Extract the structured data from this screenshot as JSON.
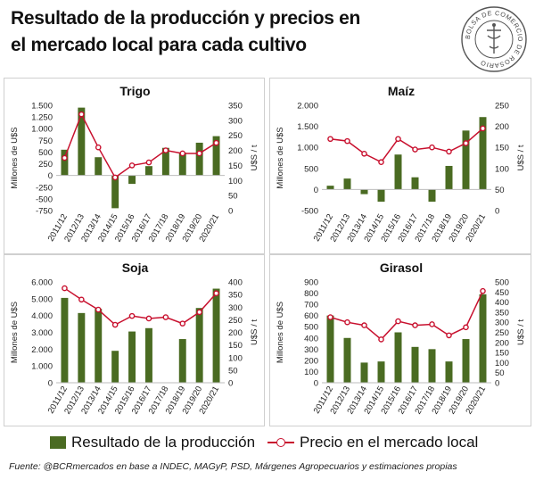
{
  "title_line1": "Resultado de la producción y precios en",
  "title_line2": "el mercado local para cada cultivo",
  "seal_text": "BOLSA DE COMERCIO DE ROSARIO",
  "legend": {
    "bar_label": "Resultado de la producción",
    "line_label": "Precio en el mercado local"
  },
  "source": "Fuente: @BCRmercados en base a INDEC, MAGyP, PSD, Márgenes Agropecuarios y estimaciones propias",
  "colors": {
    "bar": "#4a6b22",
    "line": "#c8102e"
  },
  "chart_data": [
    {
      "type": "bar",
      "title": "Trigo",
      "categories": [
        "2011/12",
        "2012/13",
        "2013/14",
        "2014/15",
        "2015/16",
        "2016/17",
        "2017/18",
        "2018/19",
        "2019/20",
        "2020/21"
      ],
      "ylabel": "Millones de U$S",
      "y2label": "U$S / t",
      "ylim": [
        -750,
        1500
      ],
      "yticks": [
        -750,
        -500,
        -250,
        0,
        250,
        500,
        750,
        1000,
        1250,
        1500
      ],
      "ytick_labels": [
        "-750",
        "-500",
        "-250",
        "0",
        "250",
        "500",
        "750",
        "1.000",
        "1.250",
        "1.500"
      ],
      "y2lim": [
        0,
        350
      ],
      "y2ticks": [
        0,
        50,
        100,
        150,
        200,
        250,
        300,
        350
      ],
      "y2tick_labels": [
        "0",
        "50",
        "100",
        "150",
        "200",
        "250",
        "300",
        "350"
      ],
      "series": [
        {
          "name": "Resultado de la producción",
          "type": "bar",
          "values": [
            550,
            1450,
            390,
            -700,
            -180,
            200,
            590,
            490,
            700,
            840
          ]
        },
        {
          "name": "Precio en el mercado local",
          "type": "line",
          "axis": "right",
          "values": [
            175,
            320,
            210,
            110,
            150,
            160,
            200,
            190,
            190,
            225
          ]
        }
      ]
    },
    {
      "type": "bar",
      "title": "Maíz",
      "categories": [
        "2011/12",
        "2012/13",
        "2013/14",
        "2014/15",
        "2015/16",
        "2016/17",
        "2017/18",
        "2018/19",
        "2019/20",
        "2020/21"
      ],
      "ylabel": "Millones de U$S",
      "y2label": "U$S / t",
      "ylim": [
        -500,
        2000
      ],
      "yticks": [
        -500,
        0,
        500,
        1000,
        1500,
        2000
      ],
      "ytick_labels": [
        "-500",
        "0",
        "500",
        "1.000",
        "1.500",
        "2.000"
      ],
      "y2lim": [
        0,
        250
      ],
      "y2ticks": [
        0,
        50,
        100,
        150,
        200,
        250
      ],
      "y2tick_labels": [
        "0",
        "50",
        "100",
        "150",
        "200",
        "250"
      ],
      "series": [
        {
          "name": "Resultado de la producción",
          "type": "bar",
          "values": [
            90,
            260,
            -110,
            -290,
            830,
            290,
            -290,
            560,
            1400,
            1720
          ]
        },
        {
          "name": "Precio en el mercado local",
          "type": "line",
          "axis": "right",
          "values": [
            170,
            165,
            135,
            115,
            170,
            145,
            150,
            140,
            160,
            195
          ]
        }
      ]
    },
    {
      "type": "bar",
      "title": "Soja",
      "categories": [
        "2011/12",
        "2012/13",
        "2013/14",
        "2014/15",
        "2015/16",
        "2016/17",
        "2017/18",
        "2018/19",
        "2019/20",
        "2020/21"
      ],
      "ylabel": "Millones de U$S",
      "y2label": "U$S / t",
      "ylim": [
        0,
        6000
      ],
      "yticks": [
        0,
        1000,
        2000,
        3000,
        4000,
        5000,
        6000
      ],
      "ytick_labels": [
        "0",
        "1.000",
        "2.000",
        "3.000",
        "4.000",
        "5.000",
        "6.000"
      ],
      "y2lim": [
        0,
        400
      ],
      "y2ticks": [
        0,
        50,
        100,
        150,
        200,
        250,
        300,
        350,
        400
      ],
      "y2tick_labels": [
        "0",
        "50",
        "100",
        "150",
        "200",
        "250",
        "300",
        "350",
        "400"
      ],
      "series": [
        {
          "name": "Resultado de la producción",
          "type": "bar",
          "values": [
            5050,
            4150,
            4400,
            1900,
            3050,
            3250,
            0,
            2600,
            4450,
            5600
          ]
        },
        {
          "name": "Precio en el mercado local",
          "type": "line",
          "axis": "right",
          "values": [
            375,
            330,
            290,
            230,
            265,
            255,
            260,
            235,
            280,
            355
          ]
        }
      ]
    },
    {
      "type": "bar",
      "title": "Girasol",
      "categories": [
        "2011/12",
        "2012/13",
        "2013/14",
        "2014/15",
        "2015/16",
        "2016/17",
        "2017/18",
        "2018/19",
        "2019/20",
        "2020/21"
      ],
      "ylabel": "Millones de U$S",
      "y2label": "U$S / t",
      "ylim": [
        0,
        900
      ],
      "yticks": [
        0,
        100,
        200,
        300,
        400,
        500,
        600,
        700,
        800,
        900
      ],
      "ytick_labels": [
        "0",
        "100",
        "200",
        "300",
        "400",
        "500",
        "600",
        "700",
        "800",
        "900"
      ],
      "y2lim": [
        0,
        500
      ],
      "y2ticks": [
        0,
        50,
        100,
        150,
        200,
        250,
        300,
        350,
        400,
        450,
        500
      ],
      "y2tick_labels": [
        "0",
        "50",
        "100",
        "150",
        "200",
        "250",
        "300",
        "350",
        "400",
        "450",
        "500"
      ],
      "series": [
        {
          "name": "Resultado de la producción",
          "type": "bar",
          "values": [
            600,
            400,
            180,
            190,
            450,
            320,
            300,
            190,
            390,
            790
          ]
        },
        {
          "name": "Precio en el mercado local",
          "type": "line",
          "axis": "right",
          "values": [
            325,
            300,
            285,
            215,
            305,
            285,
            290,
            235,
            275,
            455
          ]
        }
      ]
    }
  ]
}
